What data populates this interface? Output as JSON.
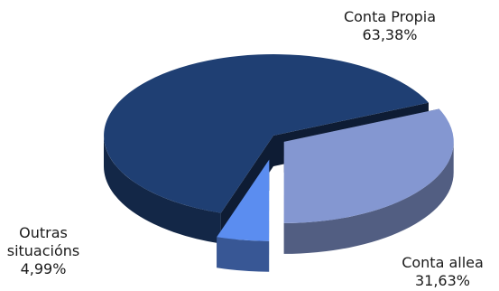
{
  "chart_data": {
    "type": "pie",
    "title": "",
    "slices": [
      {
        "label": "Conta Propia",
        "value": 63.38,
        "value_text": "63,38%",
        "color": "#1F3F73"
      },
      {
        "label": "Conta allea",
        "value": 31.63,
        "value_text": "31,63%",
        "color": "#8497D1"
      },
      {
        "label": "Outras situacións",
        "label_lines": [
          "Outras",
          "situacións"
        ],
        "value": 4.99,
        "value_text": "4,99%",
        "color": "#5B8DF0"
      }
    ],
    "legend": "none",
    "style": "3d-exploded"
  }
}
